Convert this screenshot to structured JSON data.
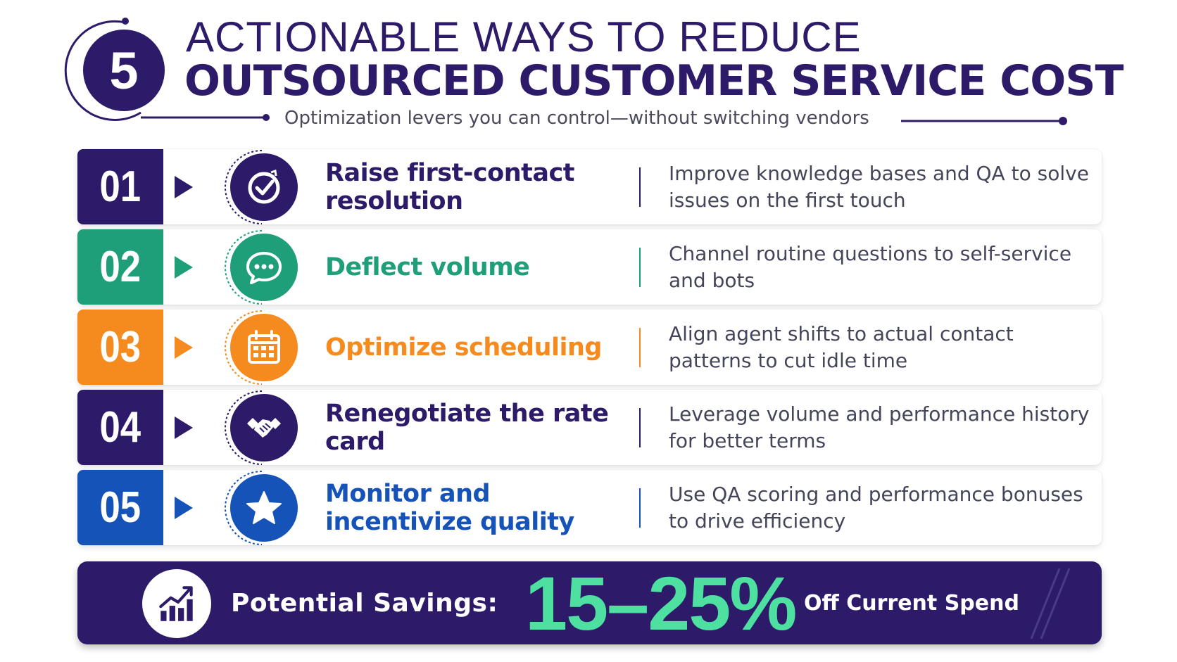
{
  "header": {
    "badge_number": "5",
    "title_line1": "ACTIONABLE WAYS TO REDUCE",
    "title_line2": "OUTSOURCED CUSTOMER SERVICE COST",
    "subtitle": "Optimization levers you can control—without switching vendors"
  },
  "colors": {
    "navy": "#2d1b69",
    "green": "#1f9e7a",
    "orange": "#f58a1f",
    "blue": "#1553b8",
    "accent_green": "#4ee0a0"
  },
  "items": [
    {
      "number": "01",
      "icon": "check-circle-icon",
      "title": "Raise first-contact resolution",
      "description": "Improve knowledge bases and QA to solve issues on the first touch",
      "color": "#2d1b69"
    },
    {
      "number": "02",
      "icon": "chat-bubble-icon",
      "title": "Deflect volume",
      "description": "Channel routine questions to self-service and bots",
      "color": "#1f9e7a"
    },
    {
      "number": "03",
      "icon": "calendar-icon",
      "title": "Optimize scheduling",
      "description": "Align agent shifts to actual contact patterns to cut idle time",
      "color": "#f58a1f"
    },
    {
      "number": "04",
      "icon": "handshake-icon",
      "title": "Renegotiate the rate card",
      "description": "Leverage volume and performance history for better terms",
      "color": "#2d1b69"
    },
    {
      "number": "05",
      "icon": "star-icon",
      "title": "Monitor and incentivize quality",
      "description": "Use QA scoring and performance bonuses to drive efficiency",
      "color": "#1553b8"
    }
  ],
  "savings": {
    "icon": "growth-chart-icon",
    "label": "Potential Savings:",
    "value": "15–25%",
    "suffix": "Off Current Spend"
  }
}
